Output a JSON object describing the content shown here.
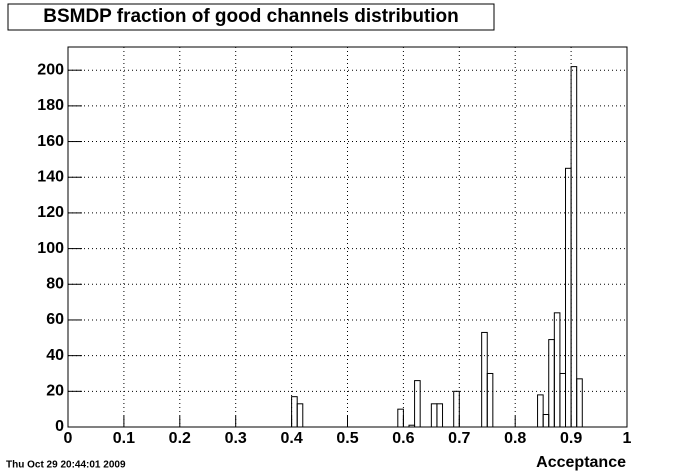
{
  "chart_data": {
    "type": "histogram",
    "title": "BSMDP fraction of good channels distribution",
    "x_label": "Acceptance",
    "timestamp": "Thu Oct 29 20:44:01 2009",
    "bins": [
      0,
      0.01,
      0.02,
      0.03,
      0.04,
      0.05,
      0.06,
      0.07,
      0.08,
      0.09,
      0.1,
      0.11,
      0.12,
      0.13,
      0.14,
      0.15,
      0.16,
      0.17,
      0.18,
      0.19,
      0.2,
      0.21,
      0.22,
      0.23,
      0.24,
      0.25,
      0.26,
      0.27,
      0.28,
      0.29,
      0.3,
      0.31,
      0.32,
      0.33,
      0.34,
      0.35,
      0.36,
      0.37,
      0.38,
      0.39,
      0.4,
      0.41,
      0.42,
      0.43,
      0.44,
      0.45,
      0.46,
      0.47,
      0.48,
      0.49,
      0.5,
      0.51,
      0.52,
      0.53,
      0.54,
      0.55,
      0.56,
      0.57,
      0.58,
      0.59,
      0.6,
      0.61,
      0.62,
      0.63,
      0.64,
      0.65,
      0.66,
      0.67,
      0.68,
      0.69,
      0.7,
      0.71,
      0.72,
      0.73,
      0.74,
      0.75,
      0.76,
      0.77,
      0.78,
      0.79,
      0.8,
      0.81,
      0.82,
      0.83,
      0.84,
      0.85,
      0.86,
      0.87,
      0.88,
      0.89,
      0.9,
      0.91,
      0.92,
      0.93,
      0.94,
      0.95,
      0.96,
      0.97,
      0.98,
      0.99,
      1
    ],
    "values": [
      0,
      0,
      0,
      0,
      0,
      0,
      0,
      0,
      0,
      0,
      0,
      0,
      0,
      0,
      0,
      0,
      0,
      0,
      0,
      0,
      0,
      0,
      0,
      0,
      0,
      0,
      0,
      0,
      0,
      0,
      0,
      0,
      0,
      0,
      0,
      0,
      0,
      0,
      0,
      0,
      17,
      13,
      0,
      0,
      0,
      0,
      0,
      0,
      0,
      0,
      0,
      0,
      0,
      0,
      0,
      0,
      0,
      0,
      0,
      10,
      0,
      1,
      26,
      0,
      0,
      13,
      13,
      0,
      0,
      20,
      0,
      0,
      0,
      0,
      53,
      30,
      0,
      0,
      0,
      0,
      0,
      0,
      0,
      0,
      18,
      7,
      49,
      64,
      30,
      145,
      202,
      27,
      0,
      0,
      0,
      0,
      0,
      0,
      0,
      0
    ],
    "color": "#000000",
    "xlim": [
      0,
      1
    ],
    "xticks": [
      0,
      0.1,
      0.2,
      0.3,
      0.4,
      0.5,
      0.6,
      0.7,
      0.8,
      0.9,
      1
    ],
    "ylim": [
      0,
      213
    ],
    "yticks": [
      0,
      20,
      40,
      60,
      80,
      100,
      120,
      140,
      160,
      180,
      200
    ],
    "grid": true
  }
}
